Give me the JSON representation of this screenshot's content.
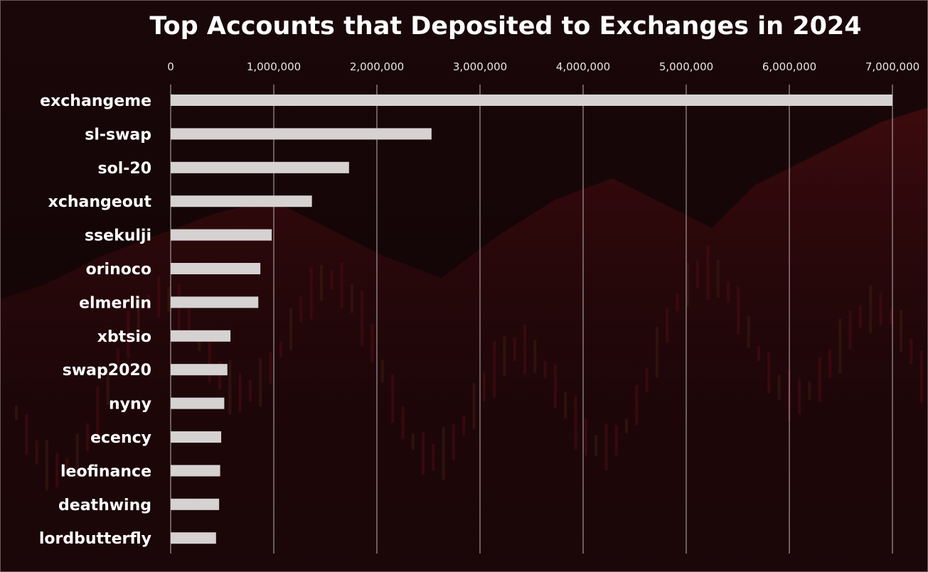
{
  "chart_data": {
    "type": "bar",
    "orientation": "horizontal",
    "title": "Top Accounts that Deposited to Exchanges in 2024",
    "xlabel": "",
    "ylabel": "",
    "xlim": [
      0,
      7000000
    ],
    "ticks": [
      0,
      1000000,
      2000000,
      3000000,
      4000000,
      5000000,
      6000000,
      7000000
    ],
    "tick_labels": [
      "0",
      "1,000,000",
      "2,000,000",
      "3,000,000",
      "4,000,000",
      "5,000,000",
      "6,000,000",
      "7,000,000"
    ],
    "categories": [
      "exchangeme",
      "sl-swap",
      "sol-20",
      "xchangeout",
      "ssekulji",
      "orinoco",
      "elmerlin",
      "xbtsio",
      "swap2020",
      "nyny",
      "ecency",
      "leofinance",
      "deathwing",
      "lordbutterfly"
    ],
    "values": [
      7000000,
      2530000,
      1730000,
      1370000,
      980000,
      870000,
      850000,
      580000,
      550000,
      520000,
      490000,
      480000,
      470000,
      440000
    ],
    "grid": true,
    "axis_position": "top",
    "colors": {
      "bar": "#d6d2d2",
      "background": "#140608",
      "text": "#ffffff"
    }
  }
}
